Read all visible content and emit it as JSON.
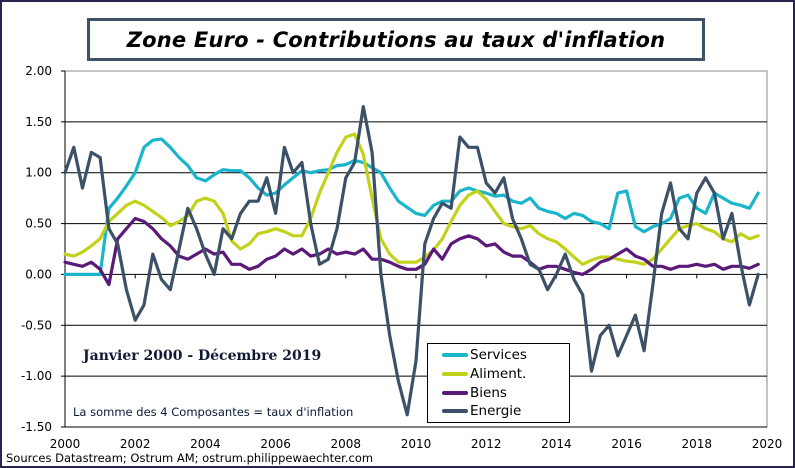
{
  "title": "Zone Euro - Contributions au taux d'inflation",
  "period_label": "Janvier 2000 - Décembre 2019",
  "note": "La somme des 4 Composantes = taux d'inflation",
  "source": "Sources Datastream; Ostrum AM; ostrum.philippewaechter.com",
  "chart_data": {
    "type": "line",
    "title": "Zone Euro - Contributions au taux d'inflation",
    "xlabel": "",
    "ylabel": "",
    "xlim": [
      2000,
      2020
    ],
    "ylim": [
      -1.5,
      2.0
    ],
    "grid": true,
    "legend_position": "bottom-center",
    "x_tick_labels": [
      "2000",
      "2002",
      "2004",
      "2006",
      "2008",
      "2010",
      "2012",
      "2014",
      "2016",
      "2018",
      "2020"
    ],
    "y_tick_labels": [
      "2.00",
      "1.50",
      "1.00",
      "0.50",
      "0.00",
      "-0.50",
      "-1.00",
      "-1.50"
    ],
    "x": [
      2000.0,
      2000.25,
      2000.5,
      2000.75,
      2001.0,
      2001.25,
      2001.5,
      2001.75,
      2002.0,
      2002.25,
      2002.5,
      2002.75,
      2003.0,
      2003.25,
      2003.5,
      2003.75,
      2004.0,
      2004.25,
      2004.5,
      2004.75,
      2005.0,
      2005.25,
      2005.5,
      2005.75,
      2006.0,
      2006.25,
      2006.5,
      2006.75,
      2007.0,
      2007.25,
      2007.5,
      2007.75,
      2008.0,
      2008.25,
      2008.5,
      2008.75,
      2009.0,
      2009.25,
      2009.5,
      2009.75,
      2010.0,
      2010.25,
      2010.5,
      2010.75,
      2011.0,
      2011.25,
      2011.5,
      2011.75,
      2012.0,
      2012.25,
      2012.5,
      2012.75,
      2013.0,
      2013.25,
      2013.5,
      2013.75,
      2014.0,
      2014.25,
      2014.5,
      2014.75,
      2015.0,
      2015.25,
      2015.5,
      2015.75,
      2016.0,
      2016.25,
      2016.5,
      2016.75,
      2017.0,
      2017.25,
      2017.5,
      2017.75,
      2018.0,
      2018.25,
      2018.5,
      2018.75,
      2019.0,
      2019.25,
      2019.5,
      2019.75
    ],
    "series": [
      {
        "name": "Services",
        "color": "#1ab4cc",
        "values": [
          0.0,
          0.0,
          0.0,
          0.0,
          0.0,
          0.65,
          0.75,
          0.87,
          1.0,
          1.25,
          1.32,
          1.33,
          1.25,
          1.15,
          1.07,
          0.95,
          0.92,
          0.98,
          1.03,
          1.02,
          1.02,
          0.95,
          0.85,
          0.78,
          0.8,
          0.88,
          0.95,
          1.02,
          1.0,
          1.02,
          1.03,
          1.07,
          1.08,
          1.12,
          1.1,
          1.05,
          1.0,
          0.85,
          0.72,
          0.66,
          0.6,
          0.58,
          0.68,
          0.72,
          0.72,
          0.82,
          0.85,
          0.82,
          0.8,
          0.77,
          0.78,
          0.72,
          0.7,
          0.75,
          0.65,
          0.62,
          0.6,
          0.55,
          0.6,
          0.58,
          0.52,
          0.5,
          0.45,
          0.8,
          0.82,
          0.47,
          0.42,
          0.47,
          0.5,
          0.55,
          0.75,
          0.78,
          0.65,
          0.6,
          0.8,
          0.75,
          0.7,
          0.68,
          0.65,
          0.8
        ]
      },
      {
        "name": "Aliment.",
        "color": "#c2d11a",
        "values": [
          0.2,
          0.18,
          0.22,
          0.28,
          0.35,
          0.52,
          0.6,
          0.68,
          0.72,
          0.68,
          0.62,
          0.56,
          0.48,
          0.52,
          0.58,
          0.72,
          0.75,
          0.72,
          0.6,
          0.33,
          0.25,
          0.3,
          0.4,
          0.42,
          0.45,
          0.42,
          0.38,
          0.38,
          0.55,
          0.8,
          1.0,
          1.2,
          1.35,
          1.38,
          1.18,
          0.75,
          0.35,
          0.2,
          0.12,
          0.12,
          0.12,
          0.17,
          0.24,
          0.35,
          0.52,
          0.68,
          0.78,
          0.82,
          0.74,
          0.62,
          0.5,
          0.47,
          0.45,
          0.48,
          0.4,
          0.35,
          0.32,
          0.25,
          0.17,
          0.1,
          0.14,
          0.17,
          0.17,
          0.15,
          0.13,
          0.12,
          0.1,
          0.15,
          0.25,
          0.35,
          0.45,
          0.48,
          0.5,
          0.45,
          0.42,
          0.35,
          0.32,
          0.4,
          0.35,
          0.38
        ]
      },
      {
        "name": "Biens",
        "color": "#5b1a78",
        "values": [
          0.12,
          0.1,
          0.08,
          0.12,
          0.05,
          -0.1,
          0.35,
          0.45,
          0.55,
          0.52,
          0.45,
          0.35,
          0.28,
          0.18,
          0.15,
          0.2,
          0.25,
          0.2,
          0.22,
          0.1,
          0.1,
          0.05,
          0.08,
          0.15,
          0.18,
          0.25,
          0.2,
          0.25,
          0.18,
          0.2,
          0.25,
          0.2,
          0.22,
          0.2,
          0.25,
          0.15,
          0.15,
          0.12,
          0.08,
          0.05,
          0.05,
          0.1,
          0.25,
          0.15,
          0.3,
          0.35,
          0.38,
          0.35,
          0.28,
          0.3,
          0.22,
          0.18,
          0.18,
          0.12,
          0.05,
          0.08,
          0.08,
          0.05,
          0.02,
          0.0,
          0.05,
          0.12,
          0.15,
          0.2,
          0.25,
          0.18,
          0.15,
          0.08,
          0.08,
          0.05,
          0.08,
          0.08,
          0.1,
          0.08,
          0.1,
          0.05,
          0.08,
          0.08,
          0.06,
          0.1
        ]
      },
      {
        "name": "Energie",
        "color": "#3c5168",
        "values": [
          1.0,
          1.25,
          0.85,
          1.2,
          1.15,
          0.45,
          0.3,
          -0.15,
          -0.45,
          -0.3,
          0.2,
          -0.05,
          -0.15,
          0.25,
          0.65,
          0.45,
          0.2,
          0.0,
          0.45,
          0.35,
          0.6,
          0.72,
          0.72,
          0.95,
          0.6,
          1.25,
          1.0,
          1.1,
          0.5,
          0.1,
          0.15,
          0.45,
          0.95,
          1.1,
          1.65,
          1.2,
          0.0,
          -0.6,
          -1.05,
          -1.38,
          -0.85,
          0.3,
          0.55,
          0.7,
          0.65,
          1.35,
          1.25,
          1.25,
          0.9,
          0.8,
          0.95,
          0.55,
          0.35,
          0.1,
          0.05,
          -0.15,
          0.0,
          0.2,
          -0.05,
          -0.2,
          -0.95,
          -0.6,
          -0.5,
          -0.8,
          -0.6,
          -0.4,
          -0.75,
          -0.1,
          0.6,
          0.9,
          0.45,
          0.35,
          0.8,
          0.95,
          0.8,
          0.35,
          0.6,
          0.1,
          -0.3,
          0.0
        ]
      }
    ]
  },
  "legend": {
    "items": [
      {
        "label": "Services",
        "color": "#1ab4cc"
      },
      {
        "label": "Aliment.",
        "color": "#c2d11a"
      },
      {
        "label": "Biens",
        "color": "#5b1a78"
      },
      {
        "label": "Energie",
        "color": "#3c5168"
      }
    ]
  }
}
